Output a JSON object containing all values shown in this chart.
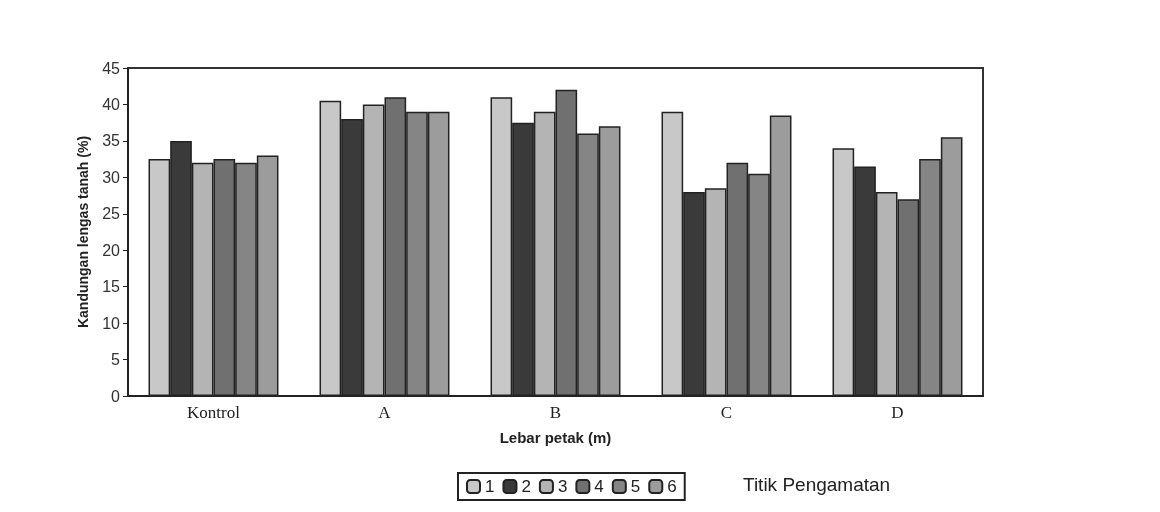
{
  "chart_data": {
    "type": "bar",
    "xlabel": "Lebar petak (m)",
    "ylabel": "Kandungan lengas tanah (%)",
    "legend_title": "Titik Pengamatan",
    "categories": [
      "Kontrol",
      "A",
      "B",
      "C",
      "D"
    ],
    "series": [
      {
        "name": "1",
        "color": "#c8c8c8",
        "values": [
          32.5,
          40.5,
          41,
          39,
          34
        ]
      },
      {
        "name": "2",
        "color": "#3a3a3a",
        "values": [
          35,
          38,
          37.5,
          28,
          31.5
        ]
      },
      {
        "name": "3",
        "color": "#b4b4b4",
        "values": [
          32,
          40,
          39,
          28.5,
          28
        ]
      },
      {
        "name": "4",
        "color": "#707070",
        "values": [
          32.5,
          41,
          42,
          32,
          27
        ]
      },
      {
        "name": "5",
        "color": "#858585",
        "values": [
          32,
          39,
          36,
          30.5,
          32.5
        ]
      },
      {
        "name": "6",
        "color": "#9c9c9c",
        "values": [
          33,
          39,
          37,
          38.5,
          35.5
        ]
      }
    ],
    "ylim": [
      0,
      45
    ],
    "yticks": [
      0,
      5,
      10,
      15,
      20,
      25,
      30,
      35,
      40,
      45
    ],
    "grid": false,
    "legend": "bottom"
  }
}
